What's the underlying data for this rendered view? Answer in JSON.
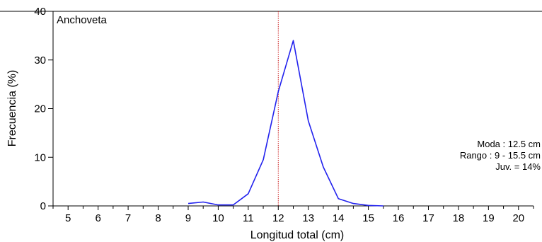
{
  "chart_data": {
    "type": "line",
    "panel_label": "Anchoveta",
    "xlabel": "Longitud total (cm)",
    "ylabel": "Frecuencia (%)",
    "xlim": [
      4.5,
      20.5
    ],
    "ylim": [
      0,
      40
    ],
    "x_ticks": [
      5,
      6,
      7,
      8,
      9,
      10,
      11,
      12,
      13,
      14,
      15,
      16,
      17,
      18,
      19,
      20
    ],
    "y_ticks": [
      0,
      10,
      20,
      30,
      40
    ],
    "grid": false,
    "reference_line": {
      "x": 12,
      "color": "#cc2222",
      "style": "dotted"
    },
    "series": [
      {
        "color": "#2222ee",
        "x": [
          9,
          9.5,
          10,
          10.5,
          11,
          11.5,
          12,
          12.5,
          13,
          13.5,
          14,
          14.5,
          15,
          15.5
        ],
        "y": [
          0.5,
          0.8,
          0.2,
          0.2,
          2.5,
          9.5,
          23.5,
          34.0,
          17.5,
          8.0,
          1.5,
          0.5,
          0.1,
          0.0
        ]
      }
    ],
    "annotations": [
      "Moda : 12.5 cm",
      "Rango : 9 - 15.5 cm",
      "Juv. = 14%"
    ]
  }
}
